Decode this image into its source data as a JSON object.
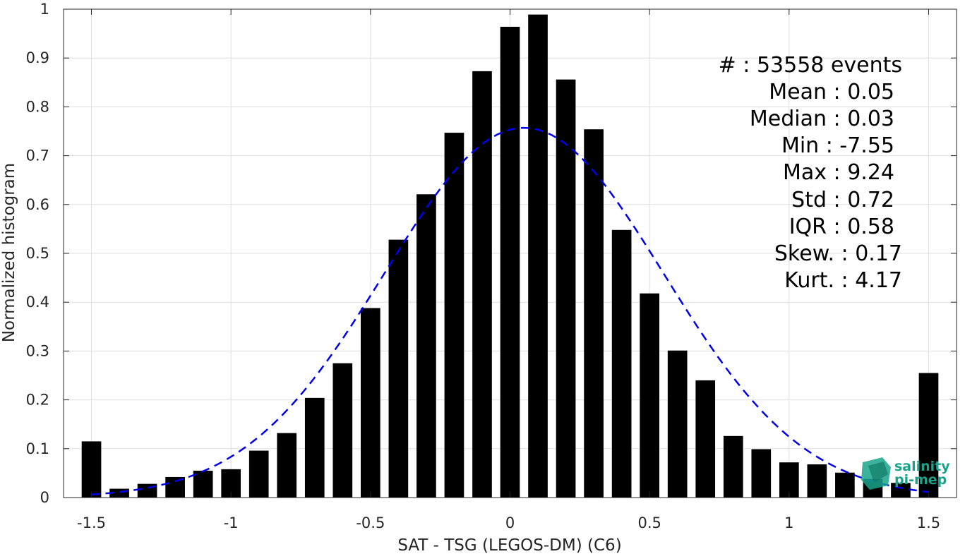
{
  "chart_data": {
    "type": "bar",
    "xlabel": "SAT - TSG (LEGOS-DM) (C6)",
    "ylabel": "Normalized histogram",
    "xlim": [
      -1.6,
      1.6
    ],
    "ylim": [
      0,
      1
    ],
    "grid": true,
    "x_ticks": [
      -1.5,
      -1,
      -0.5,
      0,
      0.5,
      1,
      1.5
    ],
    "x_tick_labels": [
      "-1.5",
      "-1",
      "-0.5",
      "0",
      "0.5",
      "1",
      "1.5"
    ],
    "y_ticks": [
      0,
      0.1,
      0.2,
      0.3,
      0.4,
      0.5,
      0.6,
      0.7,
      0.8,
      0.9,
      1
    ],
    "y_tick_labels": [
      "0",
      "0.1",
      "0.2",
      "0.3",
      "0.4",
      "0.5",
      "0.6",
      "0.7",
      "0.8",
      "0.9",
      "1"
    ],
    "bar_width": 0.07,
    "bar_color": "#000000",
    "bars": {
      "x": [
        -1.5,
        -1.4,
        -1.3,
        -1.2,
        -1.1,
        -1.0,
        -0.9,
        -0.8,
        -0.7,
        -0.6,
        -0.5,
        -0.4,
        -0.3,
        -0.2,
        -0.1,
        0.0,
        0.1,
        0.2,
        0.3,
        0.4,
        0.5,
        0.6,
        0.7,
        0.8,
        0.9,
        1.0,
        1.1,
        1.2,
        1.3,
        1.4,
        1.5
      ],
      "values": [
        0.115,
        0.018,
        0.028,
        0.042,
        0.055,
        0.058,
        0.096,
        0.132,
        0.204,
        0.275,
        0.388,
        0.528,
        0.621,
        0.747,
        0.873,
        0.964,
        0.989,
        0.856,
        0.754,
        0.548,
        0.418,
        0.301,
        0.24,
        0.126,
        0.099,
        0.072,
        0.068,
        0.051,
        0.038,
        0.03,
        0.255
      ]
    },
    "fit_curve": {
      "style": "dashed",
      "color": "#0000ee",
      "mean": 0.05,
      "std": 0.5,
      "peak": 0.757,
      "x_range": [
        -1.5,
        1.5
      ]
    },
    "stats": [
      {
        "label": "#  : 53558 events"
      },
      {
        "label": "Mean : 0.05"
      },
      {
        "label": "Median : 0.03"
      },
      {
        "label": "Min : -7.55"
      },
      {
        "label": "Max : 9.24"
      },
      {
        "label": "Std : 0.72"
      },
      {
        "label": "IQR : 0.58"
      },
      {
        "label": "Skew. : 0.17"
      },
      {
        "label": "Kurt. : 4.17"
      }
    ]
  },
  "logo": {
    "line1": "salinity",
    "line2": "pi-mep",
    "color": "#1aa38a"
  }
}
